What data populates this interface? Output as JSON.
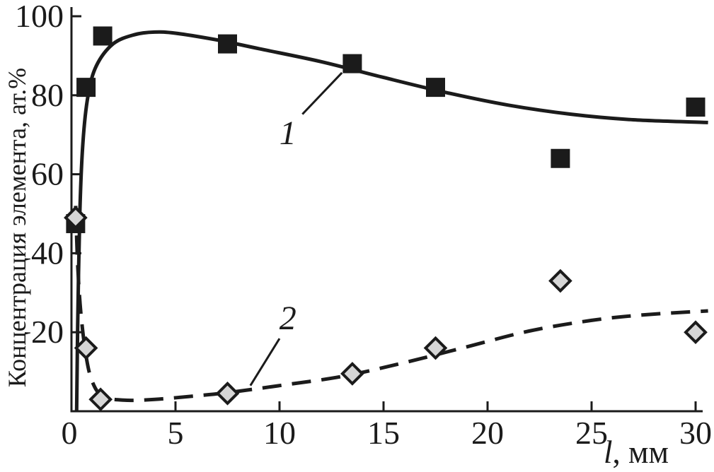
{
  "figure": {
    "background": "#ffffff",
    "ink_color": "#1b1b1b",
    "diamond_fill": "#d6d6d6"
  },
  "chart_data": {
    "type": "scatter",
    "title": "",
    "xlabel": "l, мм",
    "xlabel_symbol": "l",
    "xlabel_unit": ", мм",
    "ylabel": "Концентрация элемента, ат.%",
    "xlim": [
      0,
      30.6
    ],
    "ylim": [
      0,
      102
    ],
    "x_ticks": [
      0,
      5,
      10,
      15,
      20,
      25,
      30
    ],
    "y_ticks": [
      20,
      40,
      60,
      80,
      100
    ],
    "grid": false,
    "legend": "none; curves annotated with italic numbers 1 and 2",
    "series": [
      {
        "name": "1",
        "marker": "filled-square",
        "marker_color": "#1b1b1b",
        "line_style": "solid",
        "points": [
          [
            0.2,
            47.5
          ],
          [
            0.7,
            82
          ],
          [
            1.5,
            95
          ],
          [
            7.5,
            93
          ],
          [
            13.5,
            88
          ],
          [
            17.5,
            82
          ],
          [
            23.5,
            64
          ],
          [
            30,
            77
          ]
        ],
        "trend": [
          [
            0.25,
            0
          ],
          [
            0.3,
            22
          ],
          [
            0.4,
            50
          ],
          [
            0.55,
            68
          ],
          [
            0.8,
            80
          ],
          [
            1.2,
            87.5
          ],
          [
            2,
            93
          ],
          [
            3,
            95.3
          ],
          [
            4,
            96
          ],
          [
            5,
            95.7
          ],
          [
            7,
            94
          ],
          [
            9,
            91.8
          ],
          [
            12,
            88.5
          ],
          [
            15,
            84.5
          ],
          [
            18,
            80.7
          ],
          [
            21,
            77.5
          ],
          [
            24,
            75.2
          ],
          [
            27,
            73.8
          ],
          [
            30.6,
            73.1
          ]
        ]
      },
      {
        "name": "2",
        "marker": "filled-diamond",
        "marker_color": "#d6d6d6",
        "line_style": "dashed",
        "points": [
          [
            0.2,
            49
          ],
          [
            0.7,
            16
          ],
          [
            1.4,
            3
          ],
          [
            7.5,
            4.5
          ],
          [
            13.5,
            9.5
          ],
          [
            17.5,
            16
          ],
          [
            23.5,
            33
          ],
          [
            30,
            20
          ]
        ],
        "trend": [
          [
            0.2,
            52
          ],
          [
            0.3,
            37
          ],
          [
            0.45,
            25
          ],
          [
            0.7,
            14
          ],
          [
            1,
            7.5
          ],
          [
            1.5,
            3.8
          ],
          [
            2.5,
            2.8
          ],
          [
            4,
            3
          ],
          [
            6,
            3.9
          ],
          [
            7.5,
            4.7
          ],
          [
            10,
            6.5
          ],
          [
            13,
            8.8
          ],
          [
            16,
            12.3
          ],
          [
            19,
            16.3
          ],
          [
            22,
            20.3
          ],
          [
            25,
            23
          ],
          [
            27.5,
            24.4
          ],
          [
            30.6,
            25.4
          ]
        ]
      }
    ],
    "annotations": [
      {
        "label": "1",
        "pos": [
          10.4,
          70.5
        ],
        "leader": [
          [
            11.1,
            75.2
          ],
          [
            13.0,
            85.7
          ]
        ]
      },
      {
        "label": "2",
        "pos": [
          10.4,
          23.6
        ],
        "leader": [
          [
            10.0,
            18.4
          ],
          [
            8.6,
            6.5
          ]
        ]
      }
    ]
  }
}
